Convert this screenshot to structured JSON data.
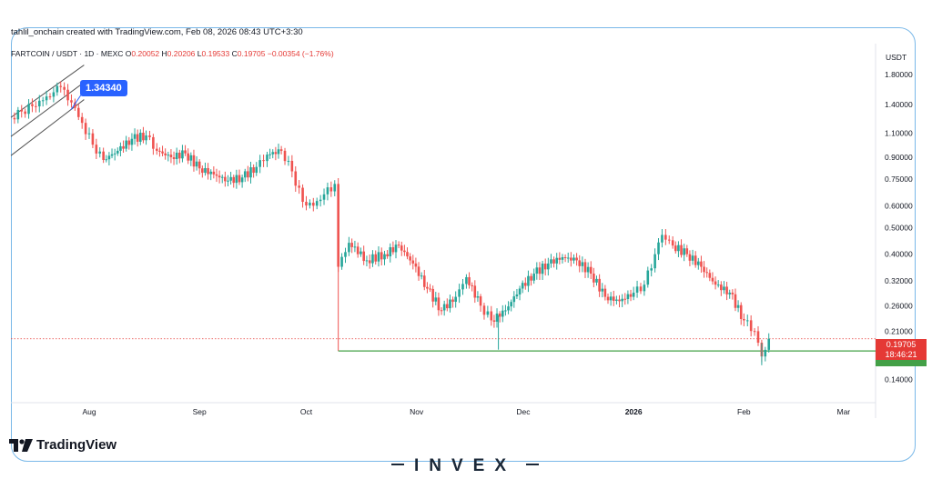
{
  "credit": "tahlil_onchain created with TradingView.com, Feb 08, 2026 08:43 UTC+3:30",
  "header": {
    "symbol": "FARTCOIN / USDT · 1D · MEXC",
    "o_label": "O",
    "o": "0.20052",
    "h_label": "H",
    "h": "0.20206",
    "l_label": "L",
    "l": "0.19533",
    "c_label": "C",
    "c": "0.19705",
    "change": "−0.00354 (−1.76%)"
  },
  "price_axis": {
    "currency": "USDT",
    "ticks": [
      "1.80000",
      "1.40000",
      "1.10000",
      "0.90000",
      "0.75000",
      "0.60000",
      "0.50000",
      "0.40000",
      "0.32000",
      "0.26000",
      "0.21000",
      "0.14000"
    ]
  },
  "current_price_tag": {
    "price": "0.19705",
    "countdown": "18:46:21",
    "color": "#e53935"
  },
  "support_color": "#43a047",
  "callout_label": "1.34340",
  "time_axis": [
    "Aug",
    "Sep",
    "Oct",
    "Nov",
    "Dec",
    "2026",
    "Feb",
    "Mar"
  ],
  "branding": {
    "tradingview": "TradingView",
    "invex": "INVEX"
  },
  "colors": {
    "up": "#26a69a",
    "down": "#ef5350",
    "accent": "#2962ff"
  },
  "chart_data": {
    "type": "candlestick",
    "symbol": "FARTCOIN / USDT",
    "interval": "1D",
    "exchange": "MEXC",
    "y_scale": "log",
    "ylim": [
      0.12,
      2.0
    ],
    "x_range": [
      "2025-07-10",
      "2026-03-10"
    ],
    "last_ohlc": {
      "open": 0.20052,
      "high": 0.20206,
      "low": 0.19533,
      "close": 0.19705,
      "change": -0.00354,
      "change_pct": -1.76
    },
    "horizontal_lines": [
      {
        "price": 0.19705,
        "style": "dotted",
        "color": "#e53935"
      },
      {
        "price": 0.178,
        "style": "solid",
        "color": "#43a047",
        "from": "2025-10-10"
      }
    ],
    "trend_channel": {
      "from": "2025-07-10",
      "to": "2025-07-28",
      "start_price": 1.2,
      "end_price": 1.75
    },
    "annotations": [
      {
        "text": "1.34340",
        "date": "2025-07-28",
        "price": 1.3434
      }
    ],
    "closes": [
      [
        "2025-07-10",
        1.25
      ],
      [
        "2025-07-13",
        1.32
      ],
      [
        "2025-07-16",
        1.38
      ],
      [
        "2025-07-19",
        1.45
      ],
      [
        "2025-07-22",
        1.55
      ],
      [
        "2025-07-24",
        1.62
      ],
      [
        "2025-07-26",
        1.45
      ],
      [
        "2025-07-28",
        1.36
      ],
      [
        "2025-07-30",
        1.2
      ],
      [
        "2025-08-02",
        1.0
      ],
      [
        "2025-08-05",
        0.88
      ],
      [
        "2025-08-09",
        0.95
      ],
      [
        "2025-08-13",
        1.05
      ],
      [
        "2025-08-17",
        1.08
      ],
      [
        "2025-08-20",
        0.95
      ],
      [
        "2025-08-24",
        0.9
      ],
      [
        "2025-08-28",
        0.93
      ],
      [
        "2025-09-01",
        0.82
      ],
      [
        "2025-09-05",
        0.78
      ],
      [
        "2025-09-09",
        0.74
      ],
      [
        "2025-09-13",
        0.76
      ],
      [
        "2025-09-17",
        0.83
      ],
      [
        "2025-09-20",
        0.92
      ],
      [
        "2025-09-24",
        0.95
      ],
      [
        "2025-09-27",
        0.8
      ],
      [
        "2025-09-30",
        0.62
      ],
      [
        "2025-10-03",
        0.6
      ],
      [
        "2025-10-06",
        0.66
      ],
      [
        "2025-10-09",
        0.72
      ],
      [
        "2025-10-10",
        0.36
      ],
      [
        "2025-10-13",
        0.44
      ],
      [
        "2025-10-18",
        0.38
      ],
      [
        "2025-10-23",
        0.4
      ],
      [
        "2025-10-27",
        0.43
      ],
      [
        "2025-10-31",
        0.37
      ],
      [
        "2025-11-04",
        0.3
      ],
      [
        "2025-11-08",
        0.25
      ],
      [
        "2025-11-12",
        0.28
      ],
      [
        "2025-11-15",
        0.33
      ],
      [
        "2025-11-19",
        0.26
      ],
      [
        "2025-11-22",
        0.23
      ],
      [
        "2025-11-26",
        0.25
      ],
      [
        "2025-11-30",
        0.3
      ],
      [
        "2025-12-04",
        0.34
      ],
      [
        "2025-12-08",
        0.37
      ],
      [
        "2025-12-12",
        0.39
      ],
      [
        "2025-12-16",
        0.38
      ],
      [
        "2025-12-20",
        0.34
      ],
      [
        "2025-12-24",
        0.28
      ],
      [
        "2025-12-28",
        0.27
      ],
      [
        "2026-01-01",
        0.29
      ],
      [
        "2026-01-04",
        0.31
      ],
      [
        "2026-01-07",
        0.4
      ],
      [
        "2026-01-09",
        0.47
      ],
      [
        "2026-01-12",
        0.43
      ],
      [
        "2026-01-16",
        0.4
      ],
      [
        "2026-01-20",
        0.36
      ],
      [
        "2026-01-24",
        0.31
      ],
      [
        "2026-01-28",
        0.29
      ],
      [
        "2026-02-01",
        0.23
      ],
      [
        "2026-02-04",
        0.21
      ],
      [
        "2026-02-06",
        0.17
      ],
      [
        "2026-02-08",
        0.197
      ]
    ]
  }
}
